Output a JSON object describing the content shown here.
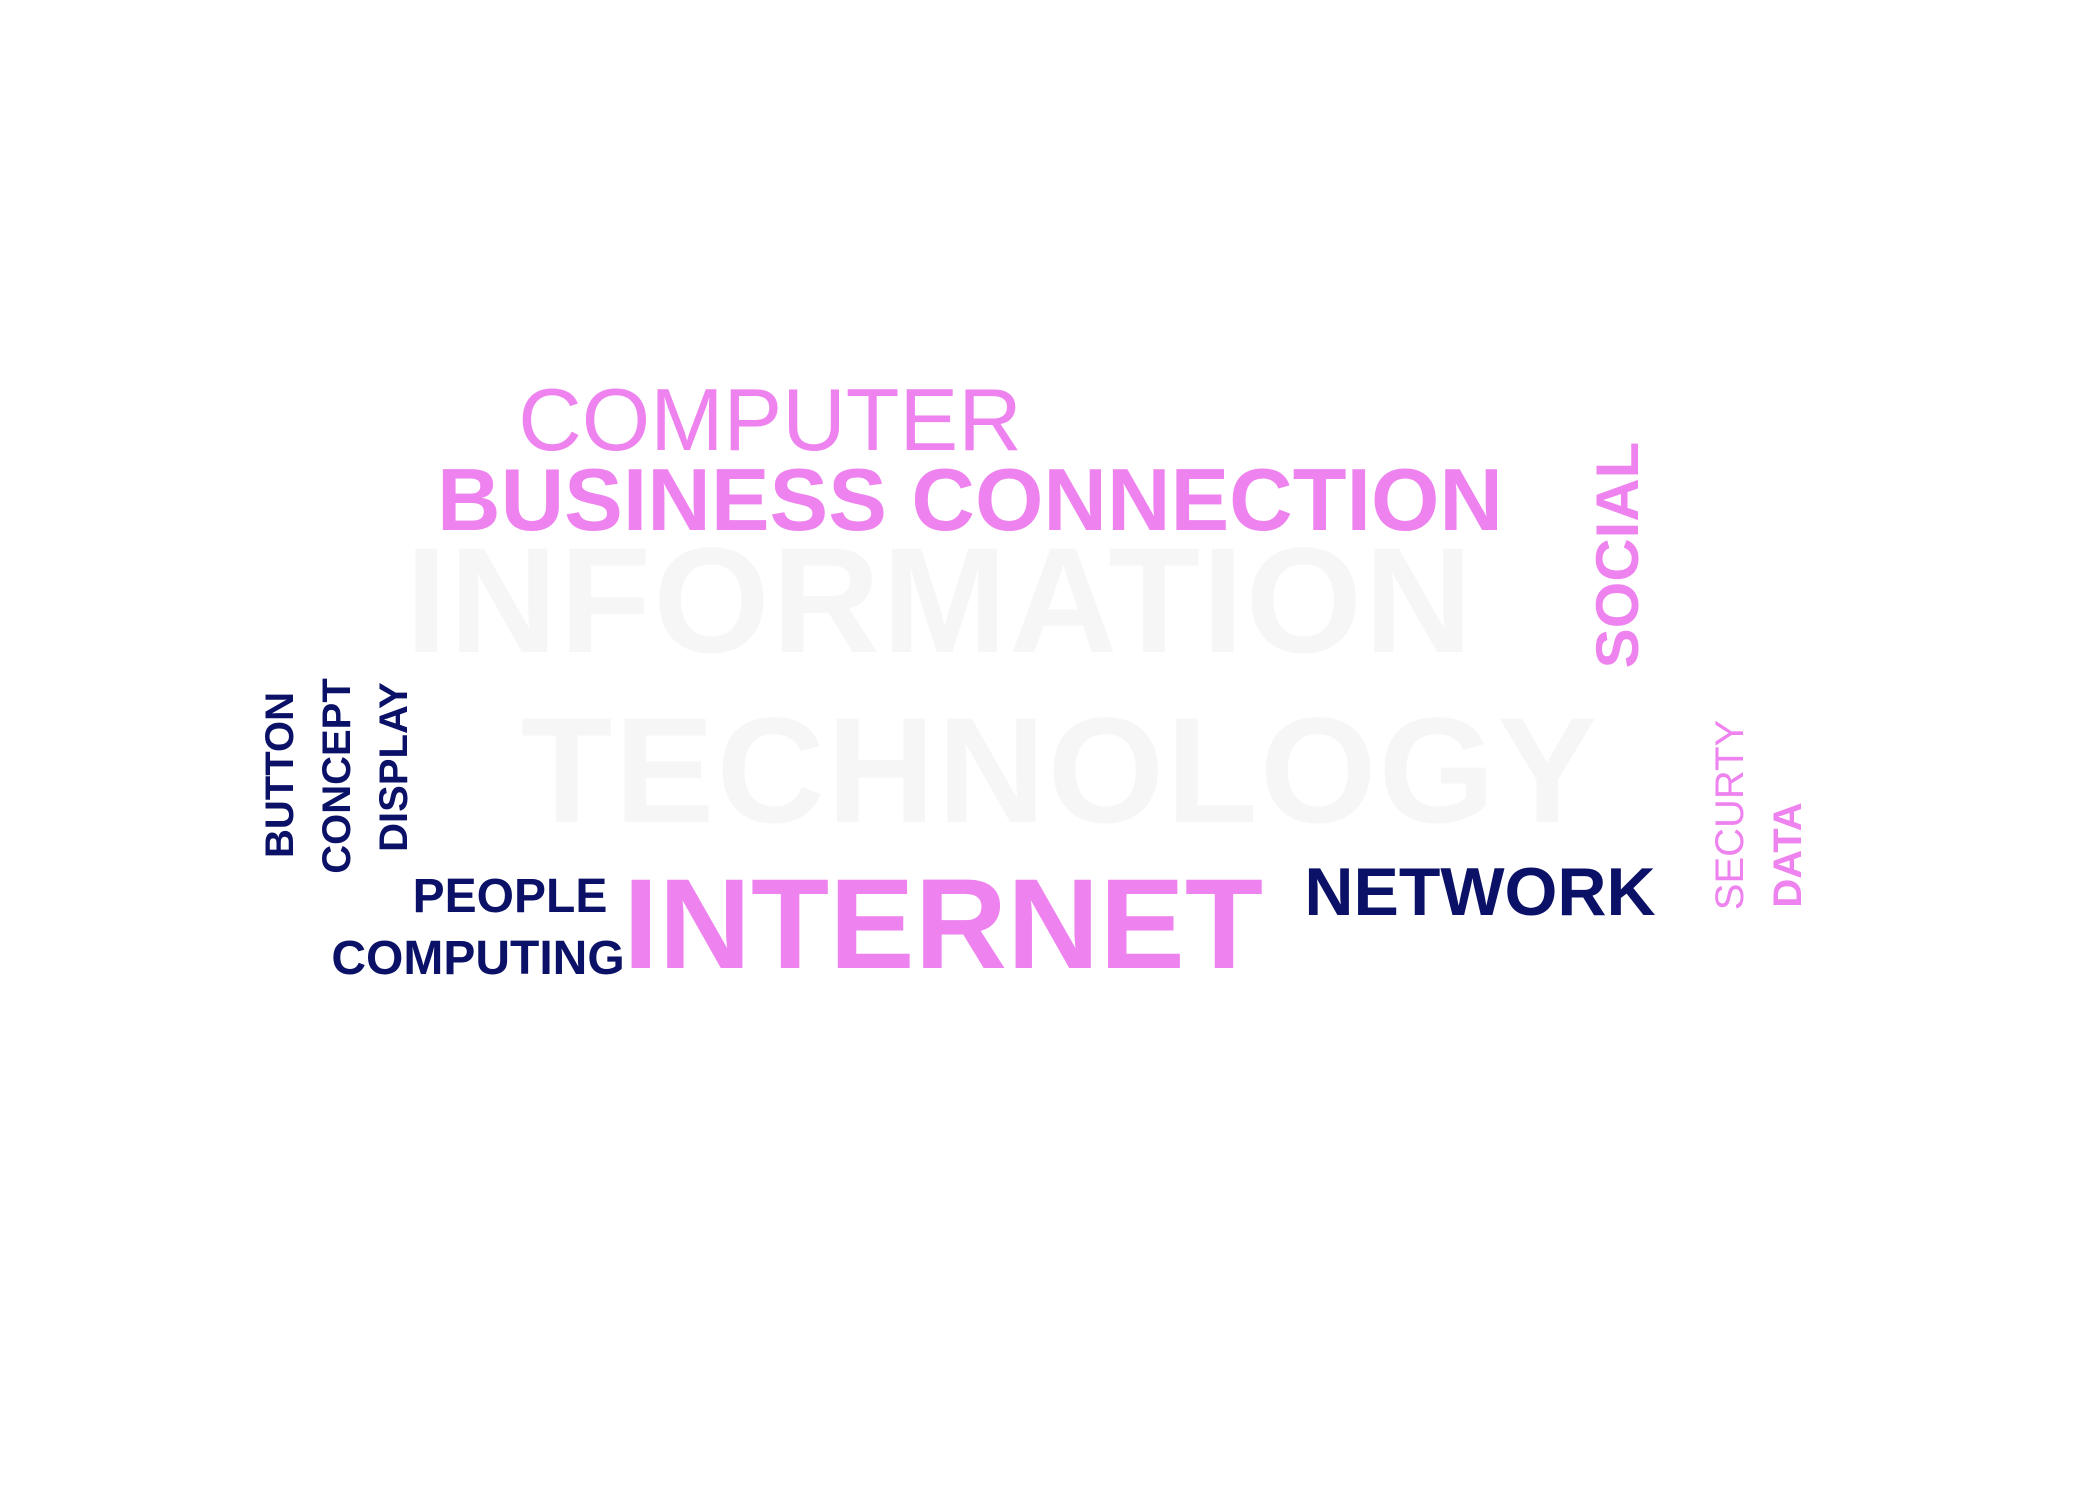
{
  "colors": {
    "pink": "#ee82ee",
    "navy": "#0b1166",
    "ghost": "#f6f6f6",
    "background": "#ffffff"
  },
  "words": {
    "information": "INFORMATION",
    "technology": "TECHNOLOGY",
    "computer": "COMPUTER",
    "business_connection": "BUSINESS CONNECTION",
    "social": "SOCIAL",
    "button": "BUTTON",
    "concept": "CONCEPT",
    "display": "DISPLAY",
    "people": "PEOPLE",
    "computing": "COMPUTING",
    "internet": "INTERNET",
    "network": "NETWORK",
    "securty": "SECURTY",
    "data": "DATA"
  }
}
